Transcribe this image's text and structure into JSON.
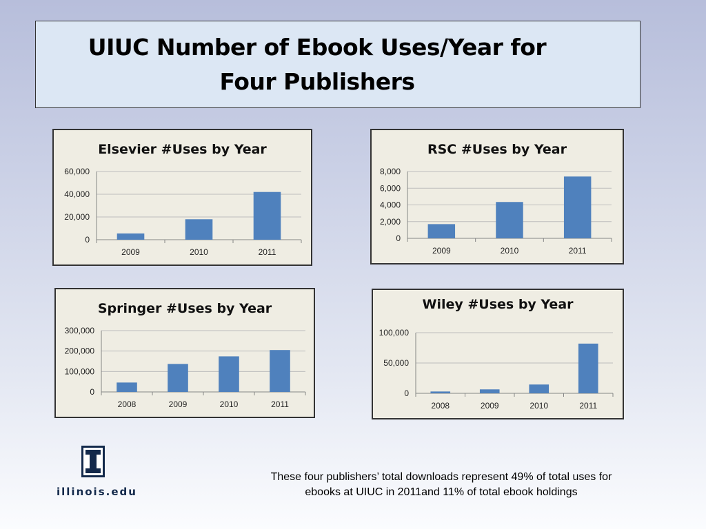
{
  "title_lines": [
    "UIUC  Number of Ebook Uses/Year for",
    "Four Publishers"
  ],
  "colors": {
    "bar": "#4f81bd",
    "chart_bg": "#efede3",
    "title_bg": "#dce7f4",
    "logo_orange": "#e84a27",
    "logo_blue": "#13294b"
  },
  "chart_data": [
    {
      "type": "bar",
      "title": "Elsevier #Uses by Year",
      "categories": [
        "2009",
        "2010",
        "2011"
      ],
      "values": [
        5500,
        18000,
        42000
      ],
      "ylim": [
        0,
        60000
      ],
      "yticks": [
        0,
        20000,
        40000,
        60000
      ],
      "ytick_labels": [
        "0",
        "20,000",
        "40,000",
        "60,000"
      ],
      "grid": true
    },
    {
      "type": "bar",
      "title": "RSC #Uses by Year",
      "categories": [
        "2009",
        "2010",
        "2011"
      ],
      "values": [
        1700,
        4350,
        7400
      ],
      "ylim": [
        0,
        8000
      ],
      "yticks": [
        0,
        2000,
        4000,
        6000,
        8000
      ],
      "ytick_labels": [
        "0",
        "2,000",
        "4,000",
        "6,000",
        "8,000"
      ],
      "grid": true
    },
    {
      "type": "bar",
      "title": "Springer #Uses by Year",
      "categories": [
        "2008",
        "2009",
        "2010",
        "2011"
      ],
      "values": [
        46000,
        137000,
        174000,
        205000
      ],
      "ylim": [
        0,
        300000
      ],
      "yticks": [
        0,
        100000,
        200000,
        300000
      ],
      "ytick_labels": [
        "0",
        "100,000",
        "200,000",
        "300,000"
      ],
      "grid": true
    },
    {
      "type": "bar",
      "title": "Wiley #Uses by Year",
      "categories": [
        "2008",
        "2009",
        "2010",
        "2011"
      ],
      "values": [
        3000,
        6500,
        14500,
        82000
      ],
      "ylim": [
        0,
        100000
      ],
      "yticks": [
        0,
        50000,
        100000
      ],
      "ytick_labels": [
        "0",
        "50,000",
        "100,000"
      ],
      "grid": true
    }
  ],
  "logo": {
    "text": "illinois.edu",
    "icon": "block-i-logo"
  },
  "footnote_lines": [
    "These four publishers’ total downloads represent 49% of total uses for",
    "ebooks at UIUC in 2011and 11% of total ebook holdings"
  ]
}
